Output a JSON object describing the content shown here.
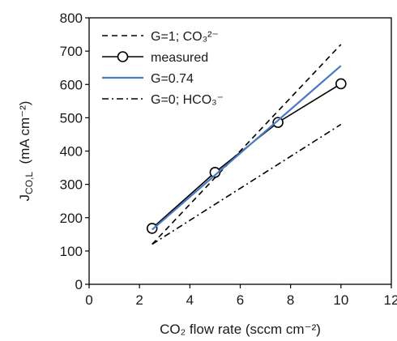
{
  "chart_data": {
    "type": "line",
    "title": "",
    "xlabel": "CO₂ flow rate (sccm cm⁻²)",
    "ylabel_main": "J",
    "ylabel_sub": "CO,L",
    "ylabel_unit": "(mA cm⁻²)",
    "xlim": [
      0,
      12
    ],
    "ylim": [
      0,
      800
    ],
    "xticks": [
      0,
      2,
      4,
      6,
      8,
      10,
      12
    ],
    "yticks": [
      0,
      100,
      200,
      300,
      400,
      500,
      600,
      700,
      800
    ],
    "grid": false,
    "legend_position": "top-left",
    "series": [
      {
        "name": "G=1; CO₃²⁻",
        "style": "dashed",
        "color": "#000000",
        "markers": false,
        "x": [
          2.5,
          10
        ],
        "y": [
          120,
          720
        ]
      },
      {
        "name": "measured",
        "style": "solid",
        "color": "#000000",
        "markers": true,
        "x": [
          2.5,
          5,
          7.5,
          10
        ],
        "y": [
          168,
          336,
          486,
          602
        ]
      },
      {
        "name": "G=0.74",
        "style": "solid",
        "color": "#4a7ac0",
        "markers": false,
        "x": [
          2.5,
          10
        ],
        "y": [
          164,
          656
        ]
      },
      {
        "name": "G=0; HCO₃⁻",
        "style": "dashdot",
        "color": "#000000",
        "markers": false,
        "x": [
          2.5,
          10
        ],
        "y": [
          120,
          480
        ]
      }
    ]
  }
}
